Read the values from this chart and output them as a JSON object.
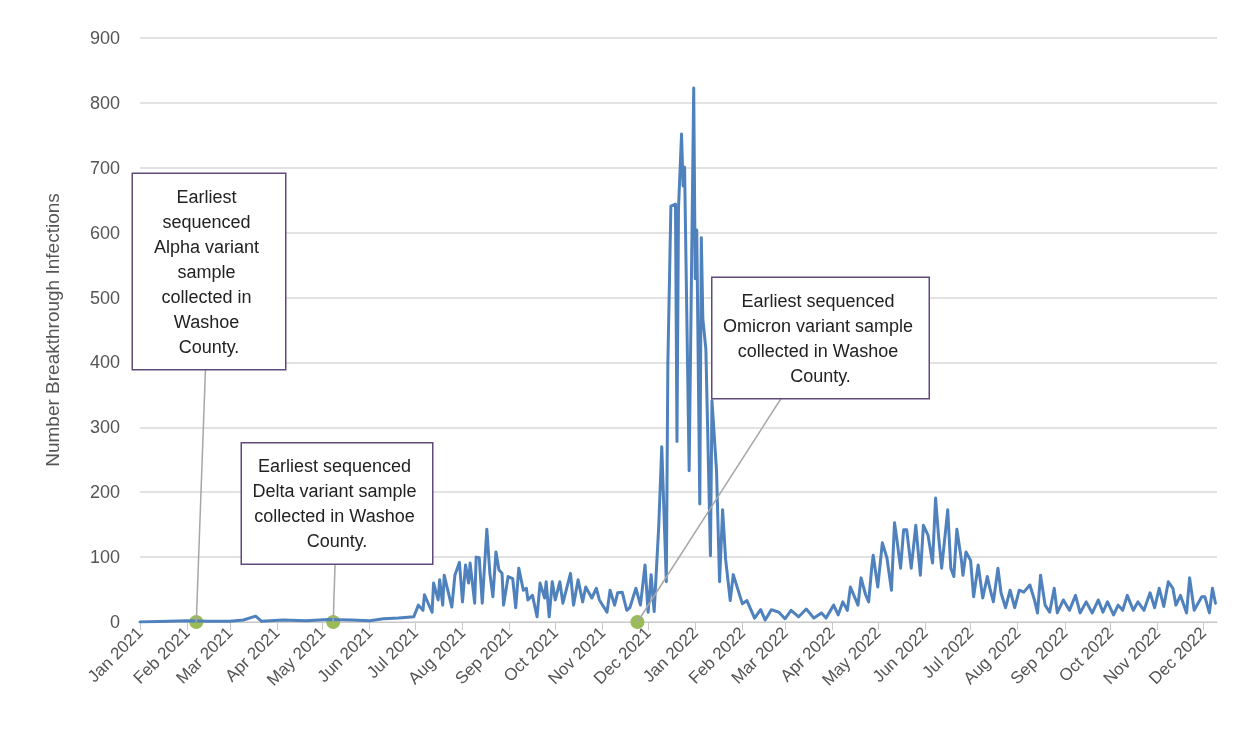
{
  "chart_data": {
    "type": "line",
    "ylabel": "Number Breakthrough Infections",
    "xlim": [
      "2021-01-01",
      "2022-12-10"
    ],
    "xticks": [
      {
        "value": "2021-01-01",
        "label": "Jan 2021"
      },
      {
        "value": "2021-02-01",
        "label": "Feb 2021"
      },
      {
        "value": "2021-03-01",
        "label": "Mar 2021"
      },
      {
        "value": "2021-04-01",
        "label": "Apr 2021"
      },
      {
        "value": "2021-05-01",
        "label": "May 2021"
      },
      {
        "value": "2021-06-01",
        "label": "Jun 2021"
      },
      {
        "value": "2021-07-01",
        "label": "Jul 2021"
      },
      {
        "value": "2021-08-01",
        "label": "Aug 2021"
      },
      {
        "value": "2021-09-01",
        "label": "Sep 2021"
      },
      {
        "value": "2021-10-01",
        "label": "Oct 2021"
      },
      {
        "value": "2021-11-01",
        "label": "Nov 2021"
      },
      {
        "value": "2021-12-01",
        "label": "Dec 2021"
      },
      {
        "value": "2022-01-01",
        "label": "Jan 2022"
      },
      {
        "value": "2022-02-01",
        "label": "Feb 2022"
      },
      {
        "value": "2022-03-01",
        "label": "Mar 2022"
      },
      {
        "value": "2022-04-01",
        "label": "Apr 2022"
      },
      {
        "value": "2022-05-01",
        "label": "May 2022"
      },
      {
        "value": "2022-06-01",
        "label": "Jun 2022"
      },
      {
        "value": "2022-07-01",
        "label": "Jul 2022"
      },
      {
        "value": "2022-08-01",
        "label": "Aug 2022"
      },
      {
        "value": "2022-09-01",
        "label": "Sep 2022"
      },
      {
        "value": "2022-10-01",
        "label": "Oct 2022"
      },
      {
        "value": "2022-11-01",
        "label": "Nov 2022"
      },
      {
        "value": "2022-12-01",
        "label": "Dec 2022"
      }
    ],
    "ylim": [
      0,
      900
    ],
    "yticks": [
      0,
      100,
      200,
      300,
      400,
      500,
      600,
      700,
      800,
      900
    ],
    "grid": "y",
    "marker": "none",
    "line_style": "solid",
    "series": [
      {
        "color": "#4f81bd",
        "x": [
          "2021-01-01",
          "2021-01-20",
          "2021-02-01",
          "2021-02-15",
          "2021-03-01",
          "2021-03-10",
          "2021-03-18",
          "2021-03-22",
          "2021-04-05",
          "2021-04-20",
          "2021-05-05",
          "2021-05-20",
          "2021-06-01",
          "2021-06-10",
          "2021-06-20",
          "2021-06-30",
          "2021-07-03",
          "2021-07-06",
          "2021-07-07",
          "2021-07-12",
          "2021-07-13",
          "2021-07-16",
          "2021-07-17",
          "2021-07-19",
          "2021-07-20",
          "2021-07-25",
          "2021-07-27",
          "2021-07-30",
          "2021-08-01",
          "2021-08-03",
          "2021-08-05",
          "2021-08-06",
          "2021-08-09",
          "2021-08-10",
          "2021-08-12",
          "2021-08-14",
          "2021-08-17",
          "2021-08-19",
          "2021-08-21",
          "2021-08-23",
          "2021-08-25",
          "2021-08-27",
          "2021-08-28",
          "2021-08-31",
          "2021-09-03",
          "2021-09-05",
          "2021-09-07",
          "2021-09-10",
          "2021-09-12",
          "2021-09-13",
          "2021-09-16",
          "2021-09-19",
          "2021-09-21",
          "2021-09-24",
          "2021-09-25",
          "2021-09-27",
          "2021-09-29",
          "2021-10-01",
          "2021-10-04",
          "2021-10-06",
          "2021-10-11",
          "2021-10-13",
          "2021-10-16",
          "2021-10-19",
          "2021-10-21",
          "2021-10-25",
          "2021-10-28",
          "2021-10-30",
          "2021-11-04",
          "2021-11-06",
          "2021-11-09",
          "2021-11-11",
          "2021-11-14",
          "2021-11-17",
          "2021-11-19",
          "2021-11-23",
          "2021-11-26",
          "2021-11-29",
          "2021-12-01",
          "2021-12-03",
          "2021-12-05",
          "2021-12-08",
          "2021-12-10",
          "2021-12-13",
          "2021-12-14",
          "2021-12-16",
          "2021-12-19",
          "2021-12-20",
          "2021-12-21",
          "2021-12-23",
          "2021-12-24",
          "2021-12-25",
          "2021-12-28",
          "2021-12-31",
          "2022-01-01",
          "2022-01-02",
          "2022-01-04",
          "2022-01-05",
          "2022-01-06",
          "2022-01-08",
          "2022-01-11",
          "2022-01-12",
          "2022-01-15",
          "2022-01-17",
          "2022-01-19",
          "2022-01-21",
          "2022-01-24",
          "2022-01-26",
          "2022-02-01",
          "2022-02-04",
          "2022-02-09",
          "2022-02-13",
          "2022-02-16",
          "2022-02-20",
          "2022-02-25",
          "2022-03-01",
          "2022-03-05",
          "2022-03-10",
          "2022-03-15",
          "2022-03-20",
          "2022-03-25",
          "2022-03-28",
          "2022-04-02",
          "2022-04-05",
          "2022-04-08",
          "2022-04-11",
          "2022-04-13",
          "2022-04-18",
          "2022-04-20",
          "2022-04-23",
          "2022-04-25",
          "2022-04-27",
          "2022-04-28",
          "2022-05-01",
          "2022-05-04",
          "2022-05-07",
          "2022-05-10",
          "2022-05-12",
          "2022-05-13",
          "2022-05-16",
          "2022-05-18",
          "2022-05-20",
          "2022-05-23",
          "2022-05-26",
          "2022-05-29",
          "2022-05-31",
          "2022-06-03",
          "2022-06-06",
          "2022-06-08",
          "2022-06-10",
          "2022-06-12",
          "2022-06-16",
          "2022-06-18",
          "2022-06-20",
          "2022-06-22",
          "2022-06-25",
          "2022-06-26",
          "2022-06-28",
          "2022-07-01",
          "2022-07-03",
          "2022-07-06",
          "2022-07-09",
          "2022-07-12",
          "2022-07-14",
          "2022-07-16",
          "2022-07-19",
          "2022-07-21",
          "2022-07-24",
          "2022-07-27",
          "2022-07-30",
          "2022-08-02",
          "2022-08-05",
          "2022-08-09",
          "2022-08-12",
          "2022-08-14",
          "2022-08-16",
          "2022-08-19",
          "2022-08-22",
          "2022-08-25",
          "2022-08-27",
          "2022-08-31",
          "2022-09-04",
          "2022-09-08",
          "2022-09-11",
          "2022-09-15",
          "2022-09-19",
          "2022-09-23",
          "2022-09-26",
          "2022-09-29",
          "2022-10-03",
          "2022-10-06",
          "2022-10-09",
          "2022-10-12",
          "2022-10-16",
          "2022-10-19",
          "2022-10-23",
          "2022-10-27",
          "2022-10-30",
          "2022-11-02",
          "2022-11-05",
          "2022-11-08",
          "2022-11-11",
          "2022-11-13",
          "2022-11-16",
          "2022-11-20",
          "2022-11-22",
          "2022-11-25",
          "2022-11-30",
          "2022-12-02",
          "2022-12-05",
          "2022-12-07",
          "2022-12-09"
        ],
        "values": [
          0,
          1,
          2,
          1,
          1,
          3,
          9,
          1,
          3,
          2,
          4,
          3,
          2,
          5,
          6,
          8,
          26,
          18,
          42,
          15,
          60,
          34,
          65,
          26,
          72,
          23,
          72,
          92,
          31,
          88,
          60,
          91,
          29,
          100,
          99,
          29,
          143,
          75,
          39,
          108,
          80,
          75,
          26,
          70,
          67,
          22,
          83,
          49,
          52,
          34,
          41,
          8,
          60,
          37,
          62,
          8,
          62,
          34,
          62,
          29,
          75,
          26,
          65,
          31,
          54,
          37,
          52,
          34,
          15,
          49,
          26,
          45,
          46,
          18,
          22,
          52,
          26,
          88,
          15,
          73,
          16,
          147,
          270,
          62,
          398,
          641,
          644,
          278,
          638,
          752,
          672,
          701,
          233,
          823,
          529,
          604,
          182,
          592,
          467,
          420,
          102,
          341,
          233,
          62,
          173,
          96,
          33,
          73,
          28,
          33,
          6,
          19,
          3,
          19,
          15,
          5,
          18,
          8,
          20,
          6,
          14,
          6,
          26,
          11,
          31,
          18,
          54,
          26,
          68,
          42,
          31,
          83,
          103,
          54,
          122,
          99,
          49,
          153,
          137,
          83,
          142,
          142,
          83,
          149,
          72,
          149,
          134,
          91,
          191,
          131,
          83,
          173,
          83,
          70,
          143,
          95,
          72,
          108,
          95,
          39,
          88,
          37,
          70,
          49,
          31,
          83,
          45,
          22,
          49,
          22,
          49,
          46,
          57,
          34,
          14,
          72,
          26,
          15,
          52,
          14,
          34,
          18,
          41,
          14,
          31,
          14,
          34,
          15,
          31,
          11,
          26,
          18,
          41,
          18,
          31,
          18,
          45,
          22,
          52,
          24,
          62,
          52,
          26,
          41,
          14,
          68,
          18,
          39,
          39,
          14,
          52,
          29
        ]
      }
    ],
    "annotations": [
      {
        "text": "Earliest sequenced Alpha variant sample collected in Washoe County.",
        "x": "2021-02-07",
        "y": 0
      },
      {
        "text": "Earliest sequenced Delta variant sample collected in Washoe County.",
        "x": "2021-05-08",
        "y": 0
      },
      {
        "text": "Earliest sequenced Omicron variant sample collected in Washoe County.",
        "x": "2021-11-24",
        "y": 0
      }
    ]
  }
}
